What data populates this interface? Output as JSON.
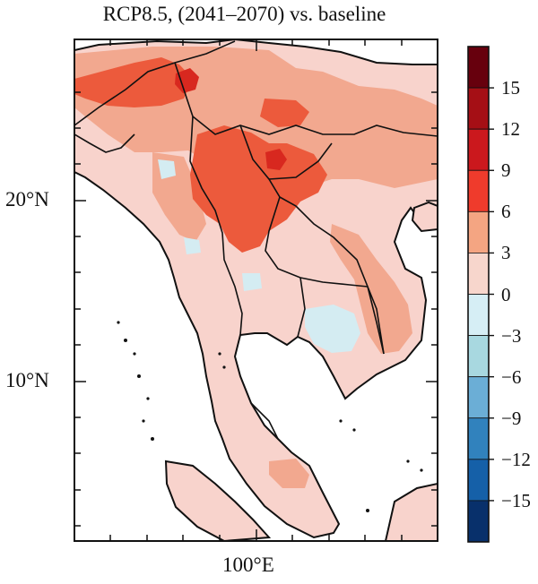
{
  "title": "RCP8.5, (2041–2070) vs. baseline",
  "lat_labels": [
    "20°N",
    "10°N"
  ],
  "lon_labels": [
    "100°E"
  ],
  "colorbar": {
    "labels": [
      "15",
      "12",
      "9",
      "6",
      "3",
      "0",
      "−3",
      "−6",
      "−9",
      "−12",
      "−15"
    ],
    "colors": [
      "#67000d",
      "#a50f15",
      "#cb181d",
      "#ef3b2c",
      "#f4a582",
      "#f7d6cc",
      "#d6eef5",
      "#a8d8e0",
      "#6baed6",
      "#3182bd",
      "#1560a8",
      "#08306b"
    ]
  },
  "palette": {
    "light_pink": "#f8d3cc",
    "salmon": "#f2a88f",
    "orange_red": "#ec5a3c",
    "red": "#d8281f",
    "light_blue": "#d4ecf2",
    "blue_gray": "#bfe0ea"
  }
}
